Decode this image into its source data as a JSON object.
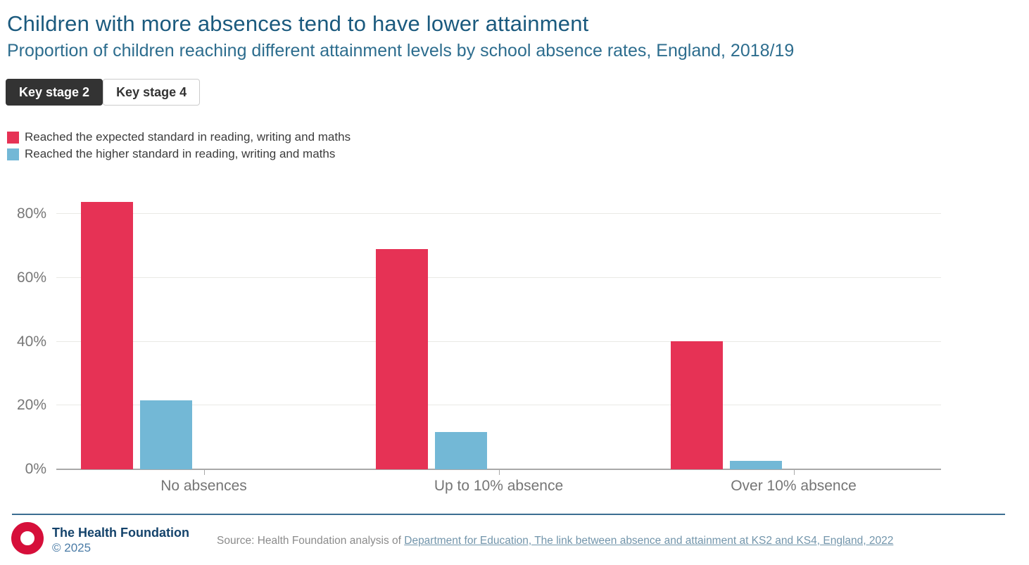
{
  "header": {
    "title": "Children with more absences tend to have lower attainment",
    "subtitle": "Proportion of children reaching different attainment levels by school absence rates, England, 2018/19"
  },
  "tabs": [
    {
      "label": "Key stage 2",
      "active": true
    },
    {
      "label": "Key stage 4",
      "active": false
    }
  ],
  "legend": [
    {
      "label": "Reached the expected standard in reading, writing and maths",
      "color": "#e63255"
    },
    {
      "label": "Reached the higher standard in reading, writing and maths",
      "color": "#73b8d6"
    }
  ],
  "chart_data": {
    "type": "bar",
    "categories": [
      "No absences",
      "Up to 10% absence",
      "Over 10% absence"
    ],
    "series": [
      {
        "name": "Reached the expected standard in reading, writing and maths",
        "color": "#e63255",
        "values": [
          83.9,
          69.0,
          40.2
        ]
      },
      {
        "name": "Reached the higher standard in reading, writing and maths",
        "color": "#73b8d6",
        "values": [
          21.7,
          11.6,
          2.6
        ]
      }
    ],
    "title": "Children with more absences tend to have lower attainment",
    "xlabel": "",
    "ylabel": "",
    "ylim": [
      0,
      88
    ],
    "yticks": [
      "0%",
      "20%",
      "40%",
      "60%",
      "80%"
    ],
    "ytick_values": [
      0,
      20,
      40,
      60,
      80
    ],
    "grid": true,
    "legend_position": "top-left"
  },
  "footer": {
    "org": "The Health Foundation",
    "copyright": "© 2025",
    "source_prefix": "Source: Health Foundation analysis of ",
    "source_link": "Department for Education, The link between absence and attainment at KS2 and KS4, England, 2022"
  },
  "colors": {
    "title": "#1b5a7e",
    "subtitle": "#2d6d8e",
    "tab_active_bg": "#333333",
    "axis_label": "#777777",
    "gridline": "#e9e9e5",
    "axis_line": "#a8a8a8",
    "divider": "#3b6e91",
    "logo_red": "#d60f3a",
    "org_text": "#14436b",
    "source_text": "#8b8b8b",
    "source_link": "#7295ab"
  }
}
